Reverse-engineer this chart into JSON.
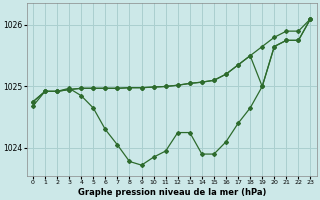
{
  "xlabel": "Graphe pression niveau de la mer (hPa)",
  "background_color": "#cce8e8",
  "grid_color": "#aacfcf",
  "line_color": "#2d6b2d",
  "xlim": [
    -0.5,
    23.5
  ],
  "ylim": [
    1023.55,
    1026.35
  ],
  "yticks": [
    1024,
    1025,
    1026
  ],
  "xticks": [
    0,
    1,
    2,
    3,
    4,
    5,
    6,
    7,
    8,
    9,
    10,
    11,
    12,
    13,
    14,
    15,
    16,
    17,
    18,
    19,
    20,
    21,
    22,
    23
  ],
  "series": [
    [
      1024.75,
      1024.92,
      1024.92,
      1024.95,
      1024.97,
      1024.97,
      1024.97,
      1024.97,
      1024.98,
      1024.98,
      1024.99,
      1025.0,
      1025.02,
      1025.05,
      1025.07,
      1025.1,
      1025.2,
      1025.35,
      1025.5,
      1025.65,
      1025.8,
      1025.9,
      1025.9,
      1026.1
    ],
    [
      1024.75,
      1024.92,
      1024.92,
      1024.95,
      1024.97,
      1024.97,
      1024.97,
      1024.97,
      1024.98,
      1024.98,
      1024.99,
      1025.0,
      1025.02,
      1025.05,
      1025.07,
      1025.1,
      1025.2,
      1025.35,
      1025.5,
      1025.0,
      1025.65,
      1025.75,
      1025.75,
      1026.1
    ],
    [
      1024.68,
      1024.92,
      1024.92,
      1024.97,
      1024.85,
      1024.65,
      1024.3,
      1024.05,
      1023.78,
      1023.72,
      1023.85,
      1023.95,
      1024.25,
      1024.25,
      1023.9,
      1023.9,
      1024.1,
      1024.4,
      1024.65,
      1025.0,
      1025.65,
      1025.75,
      1025.75,
      1026.1
    ]
  ]
}
